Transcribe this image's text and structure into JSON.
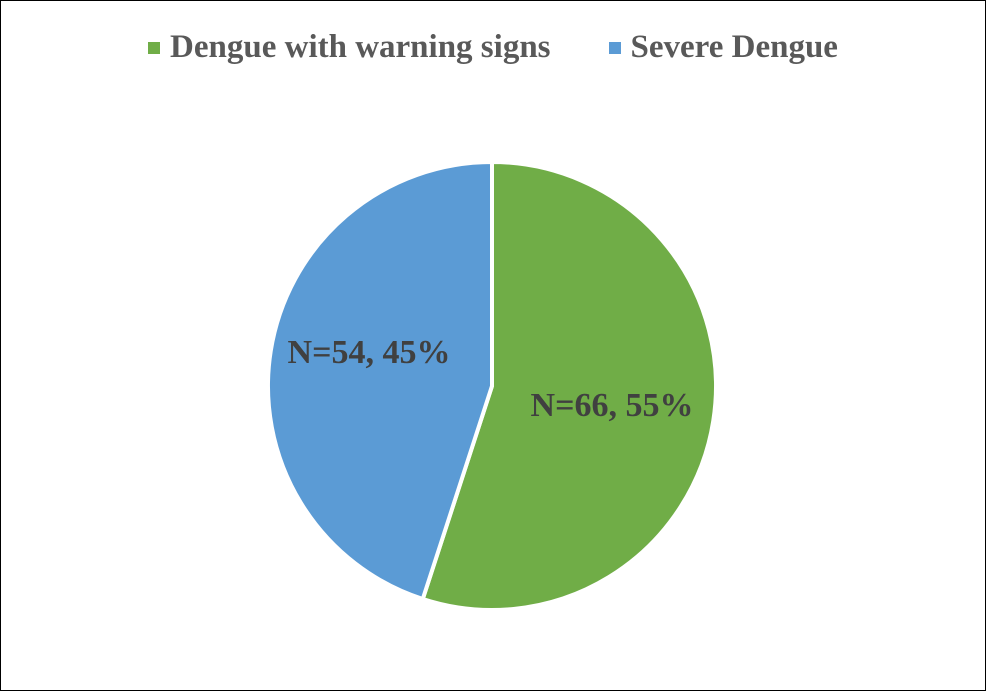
{
  "chart_data": {
    "type": "pie",
    "title": "",
    "legend_position": "top",
    "categories": [
      "Dengue with warning signs",
      "Severe Dengue"
    ],
    "values": [
      66,
      54
    ],
    "percentages": [
      55,
      45
    ],
    "colors": [
      "#70AD47",
      "#5B9BD5"
    ],
    "data_labels": [
      "N=66, 55%",
      "N=54, 45%"
    ]
  }
}
